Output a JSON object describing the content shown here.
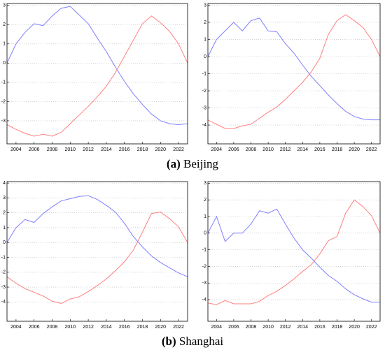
{
  "chart_data": [
    {
      "type": "line",
      "x": [
        2003,
        2004,
        2005,
        2006,
        2007,
        2008,
        2009,
        2010,
        2011,
        2012,
        2013,
        2014,
        2015,
        2016,
        2017,
        2018,
        2019,
        2020,
        2021,
        2022,
        2023
      ],
      "xlim": [
        2003,
        2023
      ],
      "xticks": [
        2004,
        2006,
        2008,
        2010,
        2012,
        2014,
        2016,
        2018,
        2020,
        2022
      ],
      "ylim": [
        -4.2,
        3.1
      ],
      "yticks": [
        -3,
        -2,
        -1,
        0,
        1,
        2,
        3
      ],
      "grid": true,
      "series": [
        {
          "color": "#7f7fff",
          "values": [
            0,
            1.0,
            1.6,
            2.05,
            1.95,
            2.45,
            2.85,
            2.95,
            2.5,
            2.05,
            1.3,
            0.6,
            -0.2,
            -0.95,
            -1.6,
            -2.15,
            -2.65,
            -3.0,
            -3.15,
            -3.2,
            -3.15
          ]
        },
        {
          "color": "#ff7f7f",
          "values": [
            -3.2,
            -3.45,
            -3.65,
            -3.8,
            -3.7,
            -3.8,
            -3.6,
            -3.15,
            -2.7,
            -2.25,
            -1.75,
            -1.2,
            -0.5,
            0.35,
            1.2,
            2.05,
            2.45,
            2.1,
            1.65,
            1.0,
            0
          ]
        }
      ]
    },
    {
      "type": "line",
      "x": [
        2003,
        2004,
        2005,
        2006,
        2007,
        2008,
        2009,
        2010,
        2011,
        2012,
        2013,
        2014,
        2015,
        2016,
        2017,
        2018,
        2019,
        2020,
        2021,
        2022,
        2023
      ],
      "xlim": [
        2003,
        2023
      ],
      "xticks": [
        2004,
        2006,
        2008,
        2010,
        2012,
        2014,
        2016,
        2018,
        2020,
        2022
      ],
      "ylim": [
        -5.1,
        3.1
      ],
      "yticks": [
        -4,
        -3,
        -2,
        -1,
        0,
        1,
        2,
        3
      ],
      "grid": true,
      "series": [
        {
          "color": "#7f7fff",
          "values": [
            0,
            1.0,
            1.5,
            2.0,
            1.5,
            2.1,
            2.25,
            1.5,
            1.45,
            0.75,
            0.2,
            -0.5,
            -1.15,
            -1.7,
            -2.25,
            -2.75,
            -3.2,
            -3.5,
            -3.65,
            -3.7,
            -3.7
          ]
        },
        {
          "color": "#ff7f7f",
          "values": [
            -3.7,
            -3.95,
            -4.2,
            -4.2,
            -4.05,
            -3.95,
            -3.6,
            -3.25,
            -2.95,
            -2.5,
            -2.0,
            -1.5,
            -0.9,
            -0.1,
            1.3,
            2.1,
            2.45,
            2.1,
            1.7,
            1.0,
            0
          ]
        }
      ]
    },
    {
      "type": "line",
      "x": [
        2003,
        2004,
        2005,
        2006,
        2007,
        2008,
        2009,
        2010,
        2011,
        2012,
        2013,
        2014,
        2015,
        2016,
        2017,
        2018,
        2019,
        2020,
        2021,
        2022,
        2023
      ],
      "xlim": [
        2003,
        2023
      ],
      "xticks": [
        2004,
        2006,
        2008,
        2010,
        2012,
        2014,
        2016,
        2018,
        2020,
        2022
      ],
      "ylim": [
        -5.3,
        4.1
      ],
      "yticks": [
        -4,
        -3,
        -2,
        -1,
        0,
        1,
        2,
        3,
        4
      ],
      "grid": true,
      "series": [
        {
          "color": "#7f7fff",
          "values": [
            0,
            1.0,
            1.55,
            1.35,
            1.95,
            2.4,
            2.8,
            2.95,
            3.1,
            3.15,
            2.9,
            2.5,
            2.05,
            1.3,
            0.4,
            -0.3,
            -0.9,
            -1.35,
            -1.7,
            -2.05,
            -2.3
          ]
        },
        {
          "color": "#ff7f7f",
          "values": [
            -2.3,
            -2.75,
            -3.1,
            -3.35,
            -3.6,
            -3.95,
            -4.1,
            -3.8,
            -3.65,
            -3.3,
            -2.9,
            -2.45,
            -1.9,
            -1.3,
            -0.5,
            0.7,
            1.95,
            2.05,
            1.6,
            1.05,
            0
          ]
        }
      ]
    },
    {
      "type": "line",
      "x": [
        2003,
        2004,
        2005,
        2006,
        2007,
        2008,
        2009,
        2010,
        2011,
        2012,
        2013,
        2014,
        2015,
        2016,
        2017,
        2018,
        2019,
        2020,
        2021,
        2022,
        2023
      ],
      "xlim": [
        2003,
        2023
      ],
      "xticks": [
        2004,
        2006,
        2008,
        2010,
        2012,
        2014,
        2016,
        2018,
        2020,
        2022
      ],
      "ylim": [
        -5.3,
        3.1
      ],
      "yticks": [
        -4,
        -3,
        -2,
        -1,
        0,
        1,
        2,
        3
      ],
      "grid": true,
      "series": [
        {
          "color": "#7f7fff",
          "values": [
            0,
            1.0,
            -0.5,
            0,
            0,
            0.55,
            1.35,
            1.2,
            1.45,
            0.55,
            -0.3,
            -1.0,
            -1.5,
            -2.05,
            -2.55,
            -2.9,
            -3.35,
            -3.7,
            -3.95,
            -4.15,
            -4.15
          ]
        },
        {
          "color": "#ff7f7f",
          "values": [
            -4.2,
            -4.3,
            -4.05,
            -4.25,
            -4.25,
            -4.25,
            -4.1,
            -3.75,
            -3.5,
            -3.15,
            -2.75,
            -2.3,
            -1.9,
            -1.25,
            -0.45,
            -0.2,
            1.2,
            2.0,
            1.6,
            1.05,
            0
          ]
        }
      ]
    }
  ],
  "captions": [
    {
      "label": "(a)",
      "text": "Beijing"
    },
    {
      "label": "(b)",
      "text": "Shanghai"
    }
  ]
}
